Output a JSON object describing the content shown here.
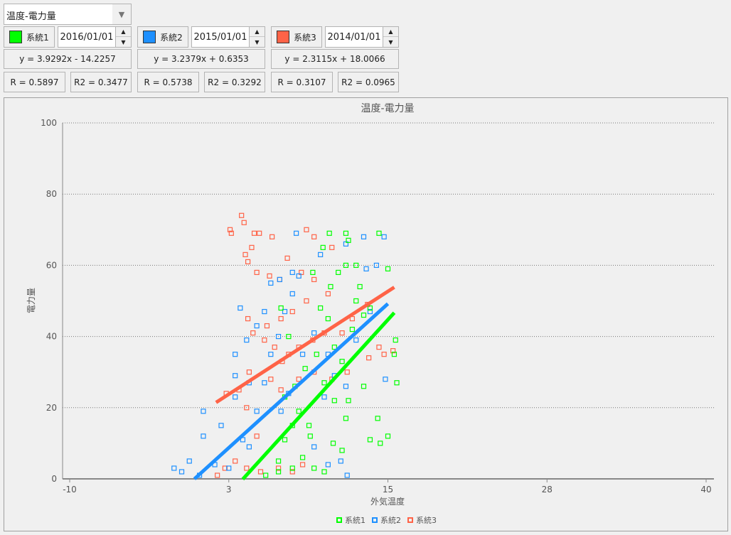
{
  "selector": {
    "value": "温度-電力量",
    "arrow_icon": "dropdown-arrow-icon"
  },
  "series": [
    {
      "name": "系統1",
      "color": "#00ff00",
      "date": "2016/01/01",
      "equation": "y = 3.9292x - 14.2257",
      "r": "R = 0.5897",
      "r2": "R2 = 0.3477",
      "slope": 3.9292,
      "intercept": -14.2257
    },
    {
      "name": "系統2",
      "color": "#1e90ff",
      "date": "2015/01/01",
      "equation": "y = 3.2379x + 0.6353",
      "r": "R = 0.5738",
      "r2": "R2 = 0.3292",
      "slope": 3.2379,
      "intercept": 0.6353
    },
    {
      "name": "系統3",
      "color": "#ff6347",
      "date": "2014/01/01",
      "equation": "y = 2.3115x + 18.0066",
      "r": "R = 0.3107",
      "r2": "R2 = 0.0965",
      "slope": 2.3115,
      "intercept": 18.0066
    }
  ],
  "chart_data": {
    "type": "scatter",
    "title": "温度-電力量",
    "xlabel": "外気温度",
    "ylabel": "電力量",
    "xlim": [
      -10,
      40
    ],
    "ylim": [
      0,
      100
    ],
    "xticks": [
      "-10",
      "3",
      "15",
      "28",
      "40"
    ],
    "yticks": [
      "0",
      "20",
      "40",
      "60",
      "80",
      "100"
    ],
    "grid": "horizontal dotted",
    "legend": "bottom",
    "series": [
      {
        "name": "系統1",
        "color": "#00ff00",
        "trendline": {
          "slope": 3.9292,
          "intercept": -14.2257,
          "x_range": [
            3.6,
            15.5
          ]
        },
        "points": [
          [
            10.4,
            69
          ],
          [
            11.7,
            69
          ],
          [
            14.3,
            69
          ],
          [
            11.9,
            67
          ],
          [
            9.9,
            65
          ],
          [
            15.0,
            59
          ],
          [
            11.7,
            60
          ],
          [
            12.5,
            60
          ],
          [
            15.6,
            39
          ],
          [
            15.5,
            35
          ],
          [
            15.7,
            27
          ],
          [
            14.2,
            17
          ],
          [
            15.0,
            12
          ],
          [
            14.4,
            10
          ],
          [
            13.6,
            11
          ],
          [
            13.1,
            26
          ],
          [
            11.9,
            22
          ],
          [
            10.7,
            10
          ],
          [
            11.4,
            8
          ],
          [
            8.9,
            12
          ],
          [
            8.8,
            15
          ],
          [
            8.0,
            19
          ],
          [
            7.5,
            15
          ],
          [
            6.9,
            11
          ],
          [
            6.4,
            5
          ],
          [
            8.3,
            6
          ],
          [
            9.2,
            3
          ],
          [
            10.0,
            2
          ],
          [
            5.4,
            1
          ],
          [
            9.7,
            48
          ],
          [
            10.3,
            45
          ],
          [
            10.8,
            37
          ],
          [
            11.4,
            33
          ],
          [
            9.4,
            35
          ],
          [
            8.5,
            31
          ],
          [
            7.7,
            26
          ],
          [
            6.9,
            23
          ],
          [
            6.6,
            48
          ],
          [
            7.2,
            40
          ],
          [
            12.5,
            50
          ],
          [
            12.8,
            54
          ],
          [
            11.1,
            58
          ],
          [
            10.5,
            54
          ],
          [
            9.1,
            58
          ],
          [
            13.1,
            46
          ],
          [
            13.6,
            48
          ],
          [
            12.2,
            42
          ],
          [
            11.7,
            17
          ],
          [
            10.8,
            22
          ],
          [
            10.0,
            27
          ],
          [
            7.5,
            3
          ],
          [
            6.4,
            2
          ]
        ]
      },
      {
        "name": "系統2",
        "color": "#1e90ff",
        "trendline": {
          "slope": 3.2379,
          "intercept": 0.6353,
          "x_range": [
            -0.2,
            15
          ]
        },
        "points": [
          [
            7.8,
            69
          ],
          [
            11.7,
            66
          ],
          [
            13.1,
            68
          ],
          [
            14.7,
            68
          ],
          [
            14.1,
            60
          ],
          [
            13.3,
            59
          ],
          [
            3.4,
            48
          ],
          [
            3.0,
            29
          ],
          [
            0.5,
            19
          ],
          [
            0.5,
            12
          ],
          [
            -1.2,
            2
          ],
          [
            -1.8,
            3
          ],
          [
            -0.6,
            5
          ],
          [
            1.9,
            15
          ],
          [
            3.6,
            11
          ],
          [
            4.1,
            9
          ],
          [
            4.7,
            19
          ],
          [
            5.3,
            27
          ],
          [
            5.8,
            35
          ],
          [
            6.4,
            40
          ],
          [
            6.9,
            47
          ],
          [
            7.5,
            52
          ],
          [
            8.0,
            57
          ],
          [
            5.8,
            55
          ],
          [
            5.3,
            47
          ],
          [
            4.7,
            43
          ],
          [
            3.9,
            39
          ],
          [
            3.0,
            35
          ],
          [
            4.1,
            27
          ],
          [
            3.0,
            23
          ],
          [
            6.6,
            19
          ],
          [
            7.2,
            24
          ],
          [
            8.3,
            35
          ],
          [
            9.2,
            41
          ],
          [
            10.3,
            35
          ],
          [
            10.8,
            29
          ],
          [
            11.7,
            26
          ],
          [
            14.8,
            28
          ],
          [
            12.5,
            39
          ],
          [
            13.6,
            47
          ],
          [
            10.0,
            23
          ],
          [
            9.2,
            9
          ],
          [
            10.3,
            4
          ],
          [
            11.8,
            1
          ],
          [
            11.3,
            5
          ],
          [
            1.4,
            4
          ],
          [
            2.5,
            3
          ],
          [
            0.2,
            1
          ],
          [
            7.5,
            58
          ],
          [
            9.7,
            63
          ],
          [
            6.5,
            56
          ]
        ]
      },
      {
        "name": "系統3",
        "color": "#ff6347",
        "trendline": {
          "slope": 2.3115,
          "intercept": 18.0066,
          "x_range": [
            1.5,
            15.5
          ]
        },
        "points": [
          [
            3.5,
            74
          ],
          [
            3.7,
            72
          ],
          [
            2.6,
            70
          ],
          [
            2.7,
            69
          ],
          [
            4.5,
            69
          ],
          [
            4.9,
            69
          ],
          [
            5.9,
            68
          ],
          [
            8.6,
            70
          ],
          [
            9.2,
            68
          ],
          [
            10.6,
            65
          ],
          [
            3.8,
            63
          ],
          [
            4.3,
            65
          ],
          [
            4.0,
            61
          ],
          [
            4.7,
            58
          ],
          [
            5.7,
            57
          ],
          [
            6.5,
            56
          ],
          [
            7.1,
            62
          ],
          [
            8.2,
            58
          ],
          [
            9.2,
            56
          ],
          [
            10.3,
            52
          ],
          [
            8.6,
            50
          ],
          [
            7.5,
            47
          ],
          [
            6.6,
            45
          ],
          [
            5.5,
            43
          ],
          [
            4.4,
            41
          ],
          [
            4.0,
            45
          ],
          [
            5.3,
            39
          ],
          [
            6.1,
            37
          ],
          [
            6.7,
            33
          ],
          [
            7.2,
            35
          ],
          [
            8.0,
            37
          ],
          [
            9.1,
            39
          ],
          [
            10.0,
            41
          ],
          [
            11.4,
            41
          ],
          [
            12.2,
            45
          ],
          [
            13.4,
            49
          ],
          [
            14.3,
            37
          ],
          [
            14.7,
            35
          ],
          [
            15.4,
            36
          ],
          [
            13.5,
            34
          ],
          [
            11.8,
            30
          ],
          [
            10.6,
            28
          ],
          [
            9.2,
            30
          ],
          [
            8.0,
            28
          ],
          [
            6.6,
            25
          ],
          [
            5.8,
            28
          ],
          [
            4.1,
            30
          ],
          [
            3.3,
            25
          ],
          [
            2.3,
            24
          ],
          [
            3.9,
            20
          ],
          [
            4.7,
            12
          ],
          [
            3.0,
            5
          ],
          [
            3.9,
            3
          ],
          [
            5.0,
            2
          ],
          [
            6.4,
            3
          ],
          [
            7.5,
            2
          ],
          [
            8.3,
            4
          ],
          [
            2.2,
            3
          ],
          [
            1.6,
            1
          ]
        ]
      }
    ]
  }
}
